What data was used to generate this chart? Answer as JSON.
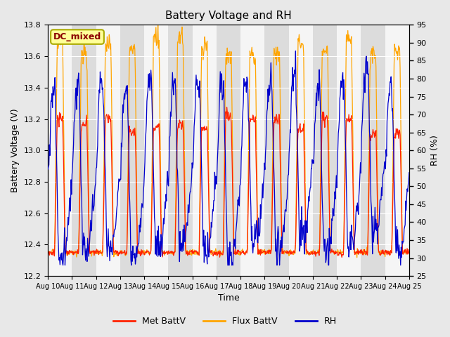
{
  "title": "Battery Voltage and RH",
  "xlabel": "Time",
  "ylabel_left": "Battery Voltage (V)",
  "ylabel_right": "RH (%)",
  "annotation": "DC_mixed",
  "annotation_color": "#8B0000",
  "annotation_bg": "#FFFF99",
  "annotation_border": "#AAAA00",
  "ylim_left": [
    12.2,
    13.8
  ],
  "ylim_right": [
    25,
    95
  ],
  "yticks_left": [
    12.2,
    12.4,
    12.6,
    12.8,
    13.0,
    13.2,
    13.4,
    13.6,
    13.8
  ],
  "yticks_right": [
    25,
    30,
    35,
    40,
    45,
    50,
    55,
    60,
    65,
    70,
    75,
    80,
    85,
    90,
    95
  ],
  "xtick_labels": [
    "Aug 10",
    "Aug 11",
    "Aug 12",
    "Aug 13",
    "Aug 14",
    "Aug 15",
    "Aug 16",
    "Aug 17",
    "Aug 18",
    "Aug 19",
    "Aug 20",
    "Aug 21",
    "Aug 22",
    "Aug 23",
    "Aug 24",
    "Aug 25"
  ],
  "legend_labels": [
    "Met BattV",
    "Flux BattV",
    "RH"
  ],
  "legend_colors": [
    "#FF2200",
    "#FFA500",
    "#0000CC"
  ],
  "line_colors": [
    "#FF2200",
    "#FFA500",
    "#0000CC"
  ],
  "bg_color": "#E8E8E8",
  "plot_bg_light": "#F5F5F5",
  "plot_bg_dark": "#DCDCDC",
  "grid_color": "#FFFFFF"
}
